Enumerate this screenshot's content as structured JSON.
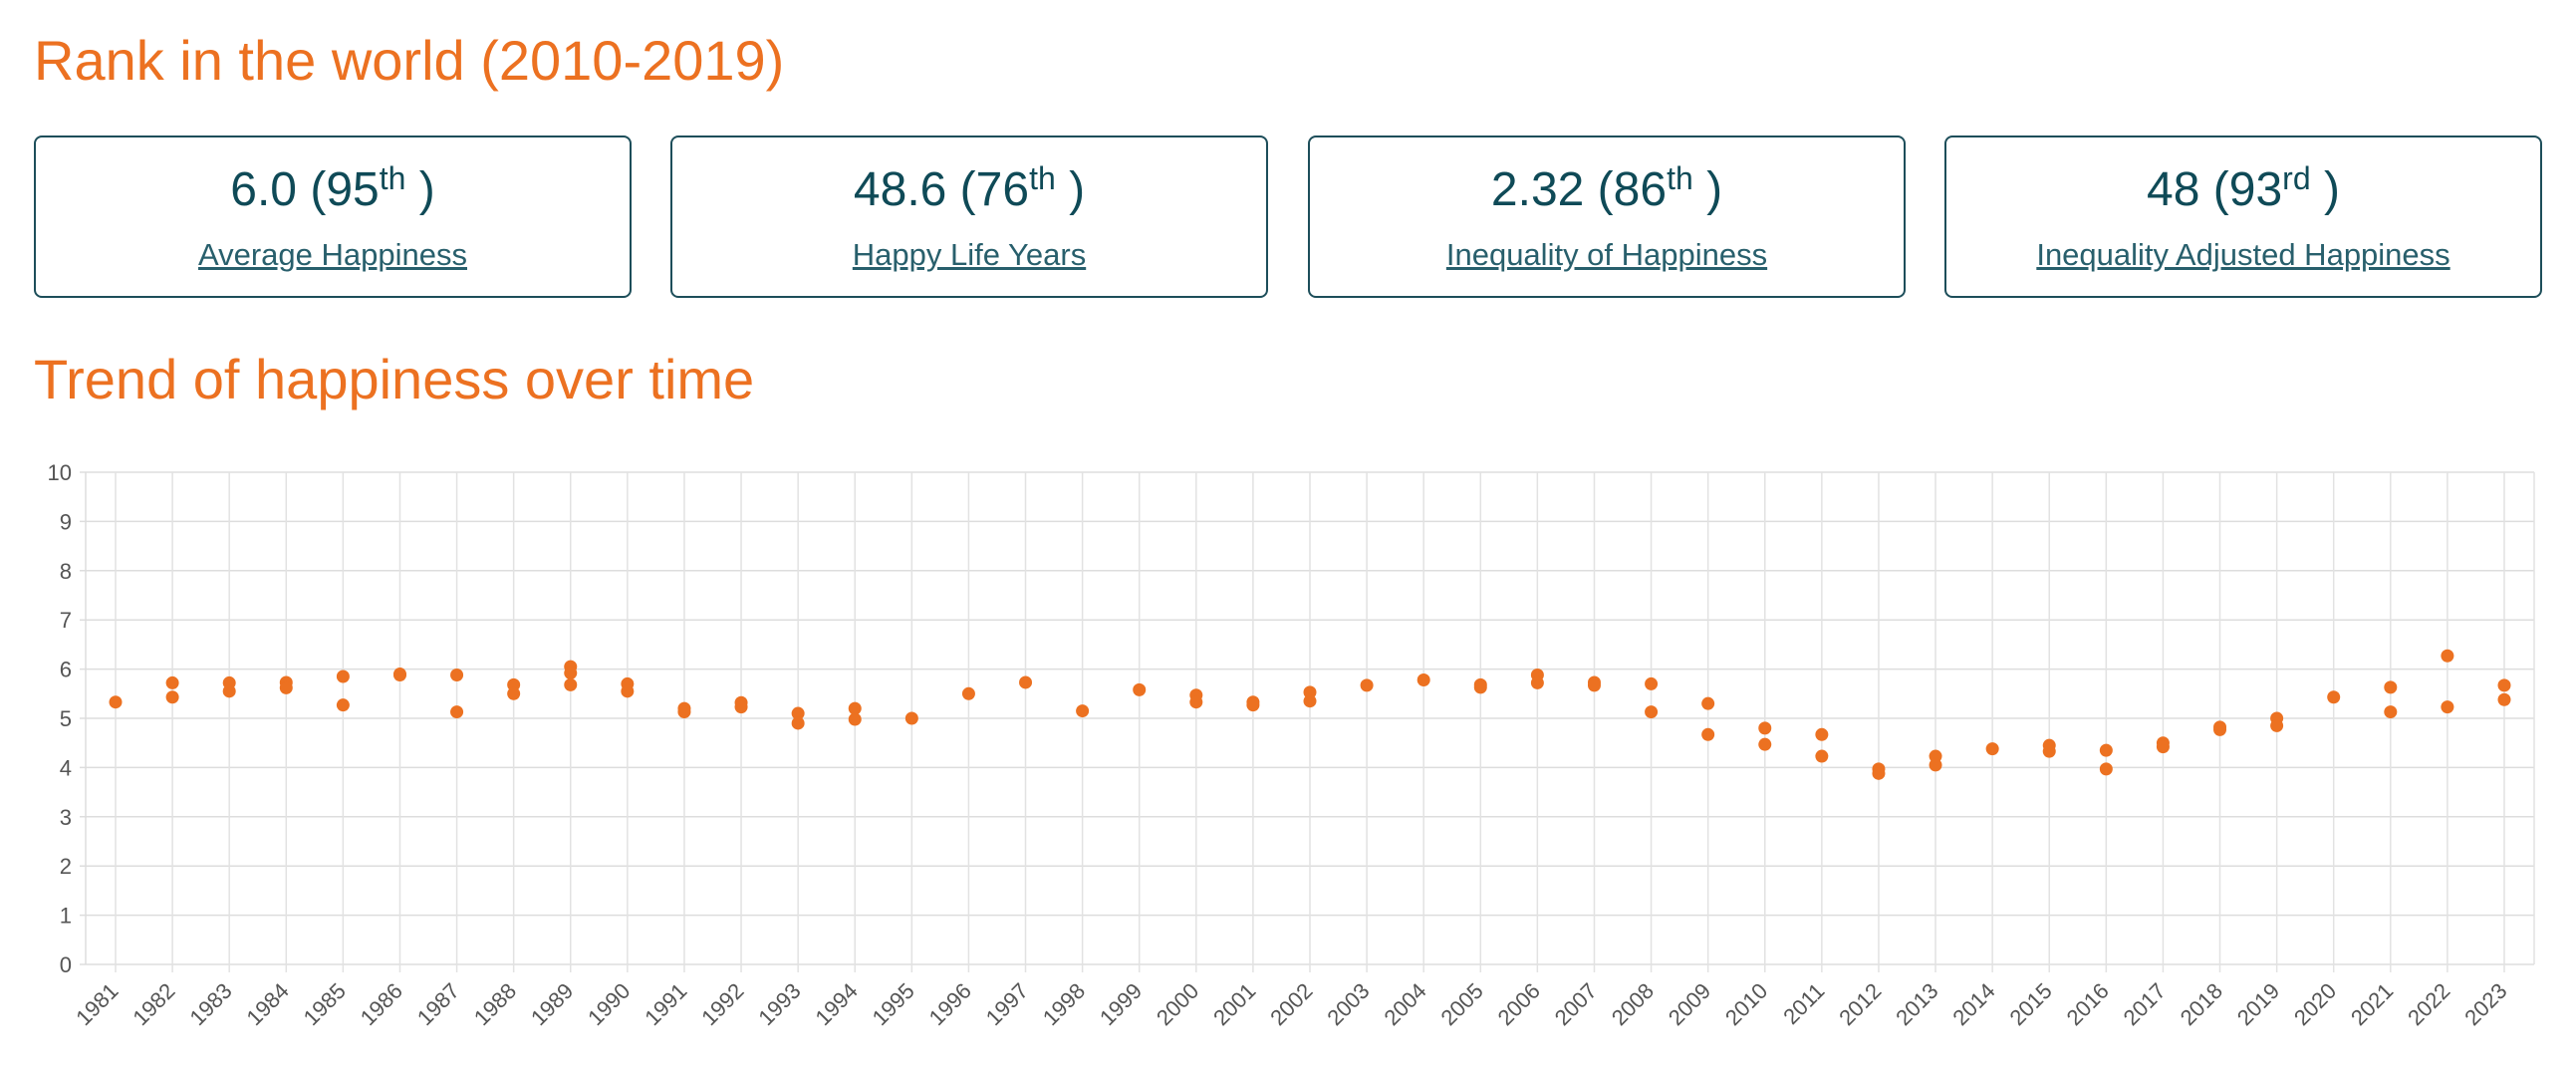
{
  "rank_section": {
    "title": "Rank in the world (2010-2019)"
  },
  "cards": [
    {
      "value": "6.0",
      "rank": "95",
      "suffix": "th",
      "label": "Average Happiness"
    },
    {
      "value": "48.6",
      "rank": "76",
      "suffix": "th",
      "label": "Happy Life Years"
    },
    {
      "value": "2.32",
      "rank": "86",
      "suffix": "th",
      "label": "Inequality of Happiness"
    },
    {
      "value": "48",
      "rank": "93",
      "suffix": "rd",
      "label": "Inequality Adjusted Happiness"
    }
  ],
  "trend_section": {
    "title": "Trend of happiness over time"
  },
  "chart_data": {
    "type": "scatter",
    "title": "",
    "xlabel": "",
    "ylabel": "",
    "ylim": [
      0,
      10
    ],
    "y_ticks": [
      0,
      1,
      2,
      3,
      4,
      5,
      6,
      7,
      8,
      9,
      10
    ],
    "grid": true,
    "point_color": "#ec7121",
    "categories": [
      "1981",
      "1982",
      "1983",
      "1984",
      "1985",
      "1986",
      "1987",
      "1988",
      "1989",
      "1990",
      "1991",
      "1992",
      "1993",
      "1994",
      "1995",
      "1996",
      "1997",
      "1998",
      "1999",
      "2000",
      "2001",
      "2002",
      "2003",
      "2004",
      "2005",
      "2006",
      "2007",
      "2008",
      "2009",
      "2010",
      "2011",
      "2012",
      "2013",
      "2014",
      "2015",
      "2016",
      "2017",
      "2018",
      "2019",
      "2020",
      "2021",
      "2022",
      "2023"
    ],
    "points": [
      {
        "x": "1981",
        "y": 5.33
      },
      {
        "x": "1982",
        "y": 5.72
      },
      {
        "x": "1982",
        "y": 5.43
      },
      {
        "x": "1983",
        "y": 5.72
      },
      {
        "x": "1983",
        "y": 5.55
      },
      {
        "x": "1984",
        "y": 5.73
      },
      {
        "x": "1984",
        "y": 5.62
      },
      {
        "x": "1985",
        "y": 5.85
      },
      {
        "x": "1985",
        "y": 5.27
      },
      {
        "x": "1986",
        "y": 5.9
      },
      {
        "x": "1986",
        "y": 5.88
      },
      {
        "x": "1987",
        "y": 5.88
      },
      {
        "x": "1987",
        "y": 5.13
      },
      {
        "x": "1988",
        "y": 5.68
      },
      {
        "x": "1988",
        "y": 5.5
      },
      {
        "x": "1989",
        "y": 6.05
      },
      {
        "x": "1989",
        "y": 5.92
      },
      {
        "x": "1989",
        "y": 5.68
      },
      {
        "x": "1990",
        "y": 5.7
      },
      {
        "x": "1990",
        "y": 5.55
      },
      {
        "x": "1991",
        "y": 5.2
      },
      {
        "x": "1991",
        "y": 5.13
      },
      {
        "x": "1992",
        "y": 5.32
      },
      {
        "x": "1992",
        "y": 5.23
      },
      {
        "x": "1993",
        "y": 5.1
      },
      {
        "x": "1993",
        "y": 4.9
      },
      {
        "x": "1994",
        "y": 5.2
      },
      {
        "x": "1994",
        "y": 4.98
      },
      {
        "x": "1995",
        "y": 5.0
      },
      {
        "x": "1996",
        "y": 5.5
      },
      {
        "x": "1997",
        "y": 5.73
      },
      {
        "x": "1998",
        "y": 5.15
      },
      {
        "x": "1999",
        "y": 5.58
      },
      {
        "x": "2000",
        "y": 5.47
      },
      {
        "x": "2000",
        "y": 5.33
      },
      {
        "x": "2001",
        "y": 5.33
      },
      {
        "x": "2001",
        "y": 5.27
      },
      {
        "x": "2002",
        "y": 5.53
      },
      {
        "x": "2002",
        "y": 5.35
      },
      {
        "x": "2003",
        "y": 5.67
      },
      {
        "x": "2004",
        "y": 5.78
      },
      {
        "x": "2005",
        "y": 5.68
      },
      {
        "x": "2005",
        "y": 5.63
      },
      {
        "x": "2006",
        "y": 5.88
      },
      {
        "x": "2006",
        "y": 5.72
      },
      {
        "x": "2007",
        "y": 5.73
      },
      {
        "x": "2007",
        "y": 5.67
      },
      {
        "x": "2008",
        "y": 5.7
      },
      {
        "x": "2008",
        "y": 5.13
      },
      {
        "x": "2009",
        "y": 5.3
      },
      {
        "x": "2009",
        "y": 4.67
      },
      {
        "x": "2010",
        "y": 4.8
      },
      {
        "x": "2010",
        "y": 4.47
      },
      {
        "x": "2011",
        "y": 4.67
      },
      {
        "x": "2011",
        "y": 4.23
      },
      {
        "x": "2012",
        "y": 3.97
      },
      {
        "x": "2012",
        "y": 3.88
      },
      {
        "x": "2013",
        "y": 4.23
      },
      {
        "x": "2013",
        "y": 4.05
      },
      {
        "x": "2014",
        "y": 4.38
      },
      {
        "x": "2015",
        "y": 4.45
      },
      {
        "x": "2015",
        "y": 4.33
      },
      {
        "x": "2016",
        "y": 4.35
      },
      {
        "x": "2016",
        "y": 3.97
      },
      {
        "x": "2017",
        "y": 4.5
      },
      {
        "x": "2017",
        "y": 4.42
      },
      {
        "x": "2018",
        "y": 4.82
      },
      {
        "x": "2018",
        "y": 4.77
      },
      {
        "x": "2019",
        "y": 5.0
      },
      {
        "x": "2019",
        "y": 4.85
      },
      {
        "x": "2020",
        "y": 5.43
      },
      {
        "x": "2021",
        "y": 5.63
      },
      {
        "x": "2021",
        "y": 5.13
      },
      {
        "x": "2022",
        "y": 6.27
      },
      {
        "x": "2022",
        "y": 5.23
      },
      {
        "x": "2023",
        "y": 5.67
      },
      {
        "x": "2023",
        "y": 5.38
      }
    ]
  }
}
